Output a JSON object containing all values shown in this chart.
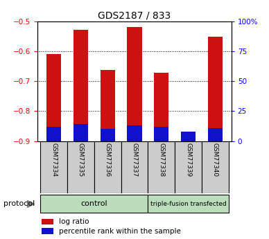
{
  "title": "GDS2187 / 833",
  "samples": [
    "GSM77334",
    "GSM77335",
    "GSM77336",
    "GSM77337",
    "GSM77338",
    "GSM77339",
    "GSM77340"
  ],
  "log_ratios": [
    -0.61,
    -0.527,
    -0.662,
    -0.518,
    -0.672,
    -0.872,
    -0.552
  ],
  "percentile_ranks_pct": [
    12,
    14,
    10,
    13,
    12,
    8,
    11
  ],
  "ylim_left": [
    -0.9,
    -0.5
  ],
  "ylim_right": [
    0,
    100
  ],
  "yticks_left": [
    -0.9,
    -0.8,
    -0.7,
    -0.6,
    -0.5
  ],
  "yticks_right": [
    0,
    25,
    50,
    75,
    100
  ],
  "ytick_labels_right": [
    "0",
    "25",
    "50",
    "75",
    "100%"
  ],
  "bar_color_red": "#cc1111",
  "bar_color_blue": "#1111cc",
  "bar_width": 0.55,
  "bg_color": "#ffffff",
  "tick_area_color": "#cccccc",
  "group_bg_color": "#bbddbb",
  "control_label": "control",
  "treatment_label": "triple-fusion transfected",
  "protocol_label": "protocol",
  "legend_log_ratio": "log ratio",
  "legend_percentile": "percentile rank within the sample",
  "n_control": 4,
  "n_treatment": 3
}
